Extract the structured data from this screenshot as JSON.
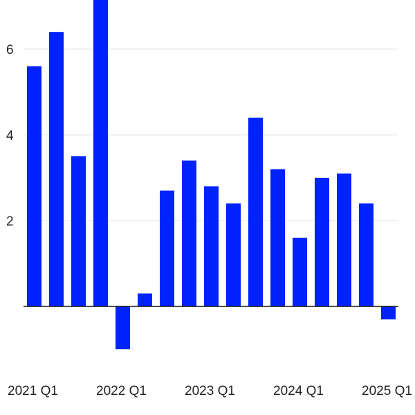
{
  "chart_data": {
    "type": "bar",
    "title": "",
    "xlabel": "",
    "ylabel": "",
    "ylim": [
      -1.0,
      7.0
    ],
    "bar_color": "#0022ff",
    "grid": true,
    "y_ticks": [
      {
        "value": 2,
        "label": "2"
      },
      {
        "value": 4,
        "label": "4"
      },
      {
        "value": 6,
        "label": "6"
      }
    ],
    "x_tick_labels": [
      {
        "category_index": 0,
        "label": "2021 Q1"
      },
      {
        "category_index": 4,
        "label": "2022 Q1"
      },
      {
        "category_index": 8,
        "label": "2023 Q1"
      },
      {
        "category_index": 12,
        "label": "2024 Q1"
      },
      {
        "category_index": 16,
        "label": "2025 Q1"
      }
    ],
    "categories": [
      "2021 Q1",
      "2021 Q2",
      "2021 Q3",
      "2021 Q4",
      "2022 Q1",
      "2022 Q2",
      "2022 Q3",
      "2022 Q4",
      "2023 Q1",
      "2023 Q2",
      "2023 Q3",
      "2023 Q4",
      "2024 Q1",
      "2024 Q2",
      "2024 Q3",
      "2024 Q4",
      "2025 Q1"
    ],
    "values": [
      5.6,
      6.4,
      3.5,
      7.3,
      -1.0,
      0.3,
      2.7,
      3.4,
      2.8,
      2.4,
      4.4,
      3.2,
      1.6,
      3.0,
      3.1,
      2.4,
      -0.3
    ]
  }
}
